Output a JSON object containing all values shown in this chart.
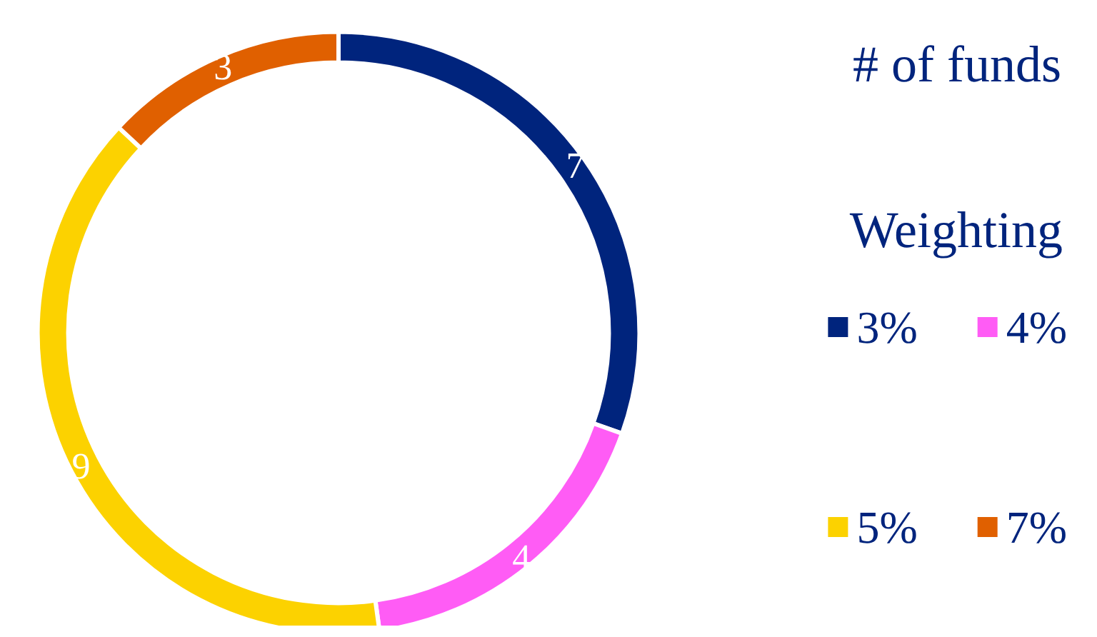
{
  "chart_data": {
    "type": "donut",
    "title": "# of funds",
    "legend_title": "Weighting",
    "categories": [
      "3%",
      "4%",
      "5%",
      "7%"
    ],
    "values": [
      7,
      4,
      9,
      3
    ],
    "colors": [
      "#00247d",
      "#ff5cf5",
      "#fcd200",
      "#e06000"
    ],
    "data_labels": true,
    "legend": "right"
  }
}
